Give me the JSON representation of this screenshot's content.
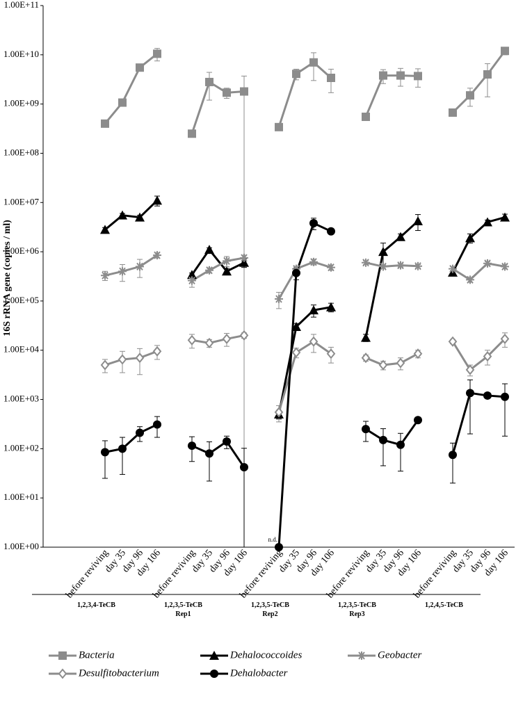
{
  "chart_data": {
    "type": "line",
    "y_label": "16S rRNA gene (copies / ml)",
    "log_y": true,
    "grid": false,
    "ylim": [
      1,
      100000000000
    ],
    "yticks": [
      {
        "value": 1,
        "label": "1.00E+00"
      },
      {
        "value": 10,
        "label": "1.00E+01"
      },
      {
        "value": 100,
        "label": "1.00E+02"
      },
      {
        "value": 1000,
        "label": "1.00E+03"
      },
      {
        "value": 10000,
        "label": "1.00E+04"
      },
      {
        "value": 100000,
        "label": "1.00E+05"
      },
      {
        "value": 1000000,
        "label": "1.00E+06"
      },
      {
        "value": 10000000,
        "label": "1.00E+07"
      },
      {
        "value": 100000000,
        "label": "1.00E+08"
      },
      {
        "value": 1000000000,
        "label": "1.00E+09"
      },
      {
        "value": 10000000000,
        "label": "1.00E+10"
      },
      {
        "value": 100000000000,
        "label": "1.00E+11"
      }
    ],
    "categories": [
      "before reviving",
      "day 35",
      "day 96",
      "day 106",
      null,
      "before reviving",
      "day 35",
      "day 96",
      "day 106",
      null,
      "before reviving",
      "day 35",
      "day 96",
      "day 106",
      null,
      "before reviving",
      "day 35",
      "day 96",
      "day 106",
      null,
      "before reviving",
      "day 35",
      "day 96",
      "day 106"
    ],
    "groups": [
      {
        "name": "1,2,3,4-TeCB"
      },
      {
        "name": "1,2,3,5-TeCB",
        "sub": "Rep1"
      },
      {
        "name": "1,2,3,5-TeCB",
        "sub": "Rep2"
      },
      {
        "name": "1,2,3,5-TeCB",
        "sub": "Rep3"
      },
      {
        "name": "1,2,4,5-TeCB"
      }
    ],
    "series": [
      {
        "name": "Bacteria",
        "color": "#8c8c8c",
        "marker": "square",
        "values": [
          400000000.0,
          1070000000.0,
          5500000000.0,
          10500000000.0,
          null,
          250000000.0,
          2800000000.0,
          1700000000.0,
          1800000000.0,
          null,
          340000000.0,
          4100000000.0,
          7000000000.0,
          3400000000.0,
          null,
          550000000.0,
          3800000000.0,
          3800000000.0,
          3700000000.0,
          null,
          670000000.0,
          1500000000.0,
          4000000000.0,
          12000000000.0
        ],
        "errors": [
          50000000.0,
          150000000.0,
          500000000.0,
          3000000000.0,
          null,
          20000000.0,
          1600000000.0,
          400000000.0,
          1900000000.0,
          null,
          30000000.0,
          1000000000.0,
          4000000000.0,
          1700000000.0,
          null,
          30000000.0,
          1200000000.0,
          1500000000.0,
          1500000000.0,
          null,
          50000000.0,
          600000000.0,
          2600000000.0,
          2000000000.0
        ]
      },
      {
        "name": "Dehalococcoides",
        "color": "#000000",
        "marker": "triangle",
        "values": [
          2800000.0,
          5500000.0,
          5000000.0,
          11000000.0,
          null,
          340000.0,
          1100000.0,
          400000.0,
          600000.0,
          null,
          500,
          30000.0,
          65000.0,
          75000.0,
          null,
          18000.0,
          1000000.0,
          2000000.0,
          4200000.0,
          null,
          380000.0,
          1900000.0,
          4000000.0,
          5000000.0
        ],
        "errors": [
          300000.0,
          500000.0,
          500000.0,
          2500000.0,
          null,
          30000.0,
          100000.0,
          60000.0,
          120000.0,
          null,
          100,
          5000.0,
          18000.0,
          15000.0,
          null,
          3000.0,
          500000.0,
          300000.0,
          1500000.0,
          null,
          30000.0,
          400000.0,
          400000.0,
          800000.0
        ]
      },
      {
        "name": "Geobacter",
        "color": "#8c8c8c",
        "marker": "star",
        "values": [
          330000.0,
          400000.0,
          500000.0,
          850000.0,
          null,
          260000.0,
          420000.0,
          650000.0,
          750000.0,
          null,
          110000.0,
          450000.0,
          620000.0,
          480000.0,
          null,
          600000.0,
          500000.0,
          530000.0,
          510000.0,
          null,
          450000.0,
          270000.0,
          580000.0,
          500000.0
        ],
        "errors": [
          70000.0,
          150000.0,
          200000.0,
          100000.0,
          null,
          70000.0,
          50000.0,
          150000.0,
          100000.0,
          null,
          40000.0,
          50000.0,
          80000.0,
          60000.0,
          null,
          50000.0,
          40000.0,
          40000.0,
          40000.0,
          null,
          50000.0,
          30000.0,
          50000.0,
          50000.0
        ]
      },
      {
        "name": "Desulfitobacterium",
        "color": "#8c8c8c",
        "marker": "diamond",
        "values": [
          5000.0,
          6500.0,
          7000.0,
          9500.0,
          null,
          16000.0,
          14000.0,
          17000.0,
          20000.0,
          null,
          550,
          9000.0,
          15000.0,
          8500.0,
          null,
          7000.0,
          5000.0,
          5500.0,
          8500.0,
          null,
          15000.0,
          4000.0,
          7500.0,
          17000.0
        ],
        "errors": [
          1500.0,
          3000.0,
          3800.0,
          3000.0,
          null,
          5000.0,
          2500.0,
          5000.0,
          2500.0,
          null,
          200,
          2000.0,
          6000.0,
          3000.0,
          null,
          1000.0,
          1000.0,
          1500.0,
          1500.0,
          null,
          1500.0,
          1000.0,
          2500.0,
          5500.0
        ]
      },
      {
        "name": "Dehalobacter",
        "color": "#000000",
        "marker": "circle",
        "values": [
          85,
          100,
          210,
          310,
          null,
          115,
          80,
          140,
          42,
          null,
          1,
          370000.0,
          3800000.0,
          2600000.0,
          null,
          250,
          150,
          120,
          380,
          null,
          75,
          1350,
          1200,
          1130
        ],
        "errors": [
          60,
          70,
          70,
          140,
          null,
          60,
          58,
          40,
          60,
          null,
          null,
          100000.0,
          1000000.0,
          200000.0,
          null,
          110,
          105,
          85,
          30,
          null,
          55,
          1150,
          150,
          950
        ]
      }
    ],
    "annotations": [
      {
        "text": "n.d.",
        "at": "chart_data.series.4.values.10"
      }
    ]
  }
}
